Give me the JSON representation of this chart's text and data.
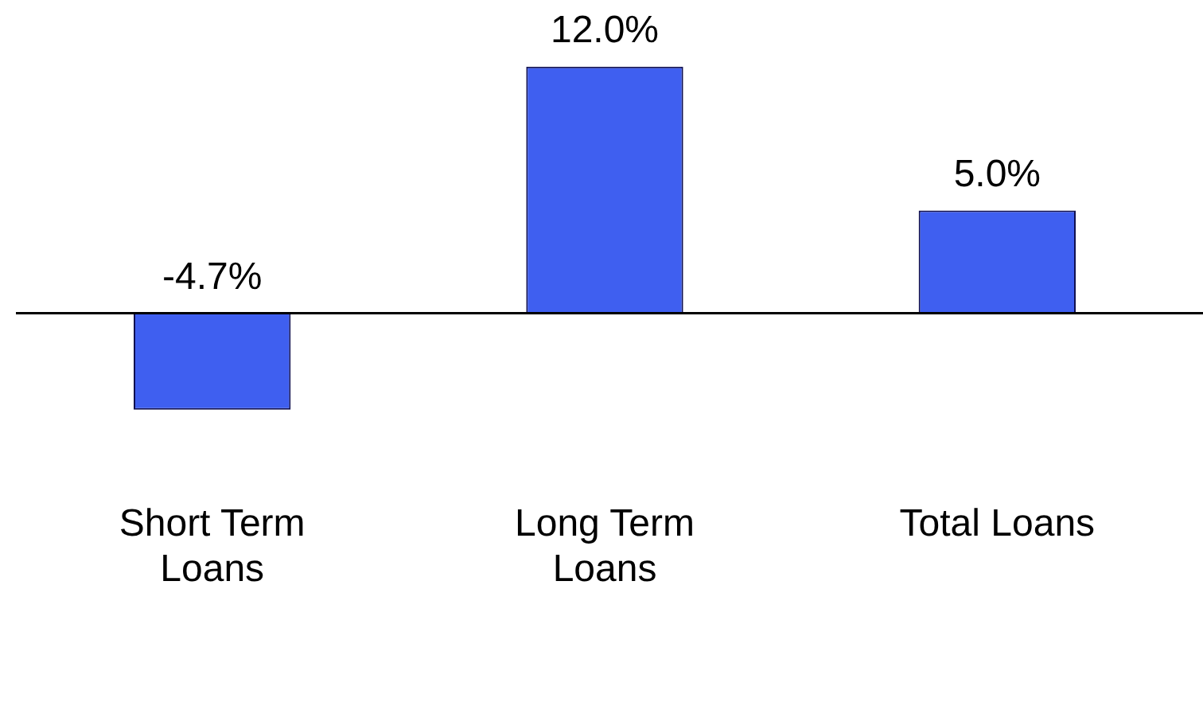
{
  "chart_data": {
    "type": "bar",
    "categories": [
      "Short Term Loans",
      "Long Term Loans",
      "Total Loans"
    ],
    "values": [
      -4.7,
      12.0,
      5.0
    ],
    "color": "#3f5ff0",
    "value_labels": [
      "-4.7%",
      "12.0%",
      "5.0%"
    ],
    "legend": false
  }
}
